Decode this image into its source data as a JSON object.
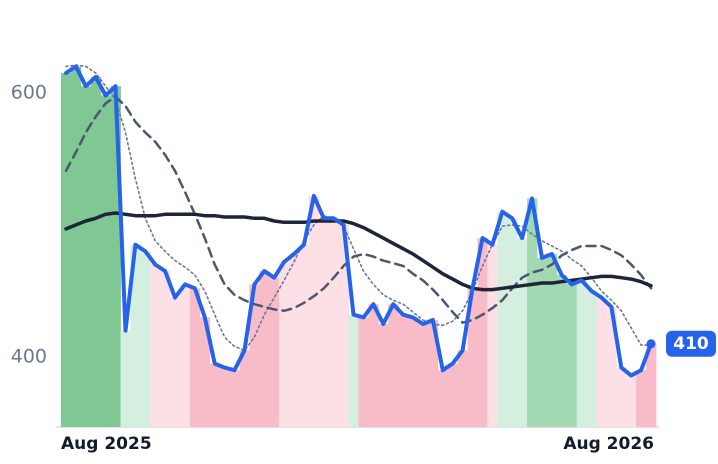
{
  "chart_data": {
    "type": "line",
    "categories": [
      "Aug 2025",
      null,
      null,
      null,
      null,
      null,
      null,
      null,
      null,
      null,
      null,
      null,
      null,
      null,
      null,
      null,
      null,
      null,
      null,
      null,
      null,
      null,
      null,
      null,
      null,
      null,
      null,
      null,
      null,
      null,
      null,
      null,
      null,
      null,
      null,
      null,
      null,
      null,
      null,
      null,
      null,
      null,
      null,
      null,
      null,
      null,
      null,
      null,
      null,
      null,
      null,
      null,
      null,
      null,
      null,
      null,
      null,
      null,
      null,
      "Aug 2026"
    ],
    "ylim": [
      347,
      640
    ],
    "yticks": [
      400,
      600
    ],
    "band_colors": [
      "#7fc793",
      "#7fc793",
      "#7fc793",
      "#7fc793",
      "#7fc793",
      "#7fc793",
      "#d4eedf",
      "#d4eedf",
      "#d4eedf",
      "#fde0e6",
      "#fde0e6",
      "#fde0e6",
      "#fde0e6",
      "#f8bcc8",
      "#f8bcc8",
      "#f8bcc8",
      "#f8bcc8",
      "#f8bcc8",
      "#f8bcc8",
      "#f8bcc8",
      "#f8bcc8",
      "#f8bcc8",
      "#fde0e6",
      "#fde0e6",
      "#fde0e6",
      "#fde0e6",
      "#fde0e6",
      "#fde0e6",
      "#fde0e6",
      "#d4eedf",
      "#f8bcc8",
      "#f8bcc8",
      "#f8bcc8",
      "#f8bcc8",
      "#f8bcc8",
      "#f8bcc8",
      "#f8bcc8",
      "#f8bcc8",
      "#f8bcc8",
      "#f8bcc8",
      "#f8bcc8",
      "#f8bcc8",
      "#f8bcc8",
      "#fde0e6",
      "#d4eedf",
      "#d4eedf",
      "#d4eedf",
      "#a2d9b2",
      "#a2d9b2",
      "#a2d9b2",
      "#a2d9b2",
      "#a2d9b2",
      "#d4eedf",
      "#d4eedf",
      "#fde0e6",
      "#fde0e6",
      "#fde0e6",
      "#fde0e6",
      "#f8bcc8",
      "#f8bcc8"
    ],
    "series": [
      {
        "color": "#2563eb",
        "width": 4,
        "dash": "none",
        "values": [
          615,
          620,
          605,
          612,
          598,
          605,
          420,
          485,
          480,
          470,
          465,
          445,
          455,
          452,
          430,
          395,
          392,
          390,
          405,
          455,
          465,
          460,
          472,
          478,
          485,
          522,
          505,
          505,
          500,
          432,
          430,
          440,
          425,
          440,
          432,
          430,
          425,
          428,
          390,
          395,
          405,
          452,
          490,
          485,
          510,
          505,
          490,
          520,
          475,
          478,
          462,
          455,
          458,
          450,
          445,
          438,
          392,
          386,
          390,
          410
        ]
      },
      {
        "color": "#1e2538",
        "width": 3.5,
        "dash": "none",
        "values": [
          497,
          500,
          503,
          505,
          508,
          509,
          508,
          507,
          507,
          507,
          508,
          508,
          508,
          508,
          507,
          507,
          506,
          506,
          506,
          505,
          505,
          503,
          502,
          502,
          502,
          503,
          503,
          503,
          503,
          501,
          498,
          494,
          490,
          486,
          482,
          478,
          473,
          468,
          463,
          459,
          455,
          452,
          451,
          451,
          452,
          453,
          454,
          455,
          456,
          456,
          457,
          458,
          459,
          460,
          461,
          461,
          460,
          459,
          457,
          454
        ]
      },
      {
        "color": "#4b5670",
        "width": 2.5,
        "dash": "9 6",
        "values": [
          541,
          555,
          570,
          582,
          592,
          597,
          590,
          578,
          570,
          563,
          553,
          541,
          525,
          508,
          490,
          470,
          455,
          447,
          443,
          440,
          438,
          436,
          435,
          437,
          441,
          446,
          452,
          460,
          469,
          476,
          478,
          476,
          473,
          471,
          469,
          463,
          458,
          451,
          443,
          434,
          426,
          428,
          432,
          437,
          443,
          452,
          460,
          464,
          466,
          470,
          477,
          481,
          484,
          484,
          484,
          481,
          477,
          470,
          462,
          452
        ]
      },
      {
        "color": "#6b7894",
        "width": 1.6,
        "dash": "2 3",
        "values": [
          620,
          621,
          620,
          615,
          605,
          595,
          570,
          535,
          505,
          488,
          480,
          473,
          468,
          462,
          450,
          432,
          415,
          408,
          405,
          415,
          432,
          445,
          458,
          472,
          488,
          500,
          507,
          504,
          499,
          482,
          465,
          455,
          447,
          443,
          440,
          434,
          428,
          425,
          424,
          427,
          435,
          450,
          469,
          485,
          499,
          500,
          499,
          493,
          488,
          484,
          480,
          474,
          469,
          460,
          450,
          443,
          435,
          422,
          409,
          409
        ]
      }
    ]
  }
}
